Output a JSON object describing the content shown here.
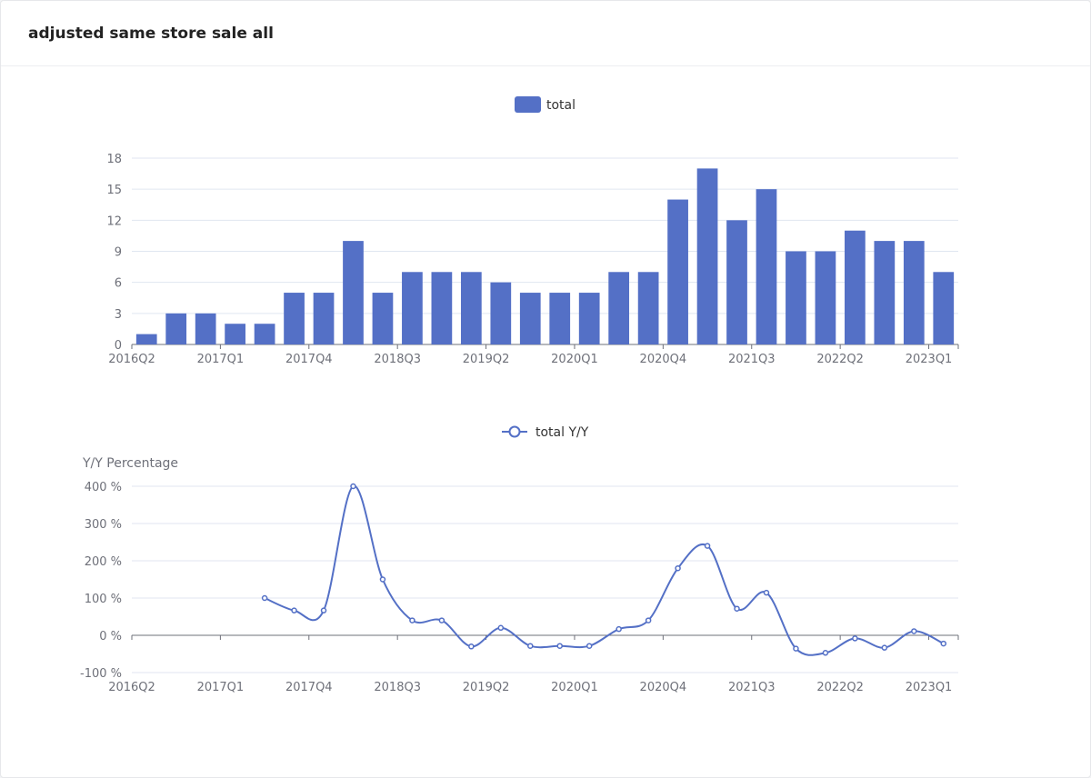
{
  "page": {
    "title": "adjusted same store sale all"
  },
  "colors": {
    "series": "#5470c6",
    "grid": "#e0e6f1",
    "axis": "#6e7079"
  },
  "chart_data": [
    {
      "type": "bar",
      "legend": [
        "total"
      ],
      "categories": [
        "2016Q2",
        "2016Q3",
        "2016Q4",
        "2017Q1",
        "2017Q2",
        "2017Q3",
        "2017Q4",
        "2018Q1",
        "2018Q2",
        "2018Q3",
        "2018Q4",
        "2019Q1",
        "2019Q2",
        "2019Q3",
        "2019Q4",
        "2020Q1",
        "2020Q2",
        "2020Q3",
        "2020Q4",
        "2021Q1",
        "2021Q2",
        "2021Q3",
        "2021Q4",
        "2022Q1",
        "2022Q2",
        "2022Q3",
        "2022Q4",
        "2023Q1"
      ],
      "x_tick_labels": [
        "2016Q2",
        "2017Q1",
        "2017Q4",
        "2018Q3",
        "2019Q2",
        "2020Q1",
        "2020Q4",
        "2021Q3",
        "2022Q2",
        "2023Q1"
      ],
      "series": [
        {
          "name": "total",
          "values": [
            1,
            3,
            3,
            2,
            2,
            5,
            5,
            10,
            5,
            7,
            7,
            7,
            6,
            5,
            5,
            5,
            7,
            7,
            14,
            17,
            12,
            15,
            9,
            9,
            11,
            10,
            10,
            7
          ]
        }
      ],
      "y_ticks": [
        "0",
        "3",
        "6",
        "9",
        "12",
        "15",
        "18"
      ],
      "ylim": [
        0,
        18
      ],
      "grid": true,
      "legend_position": "top-center"
    },
    {
      "type": "line",
      "legend": [
        "total Y/Y"
      ],
      "ylabel": "Y/Y Percentage",
      "categories": [
        "2016Q2",
        "2016Q3",
        "2016Q4",
        "2017Q1",
        "2017Q2",
        "2017Q3",
        "2017Q4",
        "2018Q1",
        "2018Q2",
        "2018Q3",
        "2018Q4",
        "2019Q1",
        "2019Q2",
        "2019Q3",
        "2019Q4",
        "2020Q1",
        "2020Q2",
        "2020Q3",
        "2020Q4",
        "2021Q1",
        "2021Q2",
        "2021Q3",
        "2021Q4",
        "2022Q1",
        "2022Q2",
        "2022Q3",
        "2022Q4",
        "2023Q1"
      ],
      "x_tick_labels": [
        "2016Q2",
        "2017Q1",
        "2017Q4",
        "2018Q3",
        "2019Q2",
        "2020Q1",
        "2020Q4",
        "2021Q3",
        "2022Q2",
        "2023Q1"
      ],
      "series": [
        {
          "name": "total Y/Y",
          "values": [
            null,
            null,
            null,
            null,
            100,
            66.7,
            66.7,
            400,
            150,
            40,
            40,
            -30,
            20,
            -28.6,
            -28.6,
            -28.6,
            16.7,
            40,
            180,
            240,
            71.4,
            114.3,
            -35.7,
            -47.1,
            -8.3,
            -33.3,
            11.1,
            -22.2
          ]
        }
      ],
      "y_ticks": [
        "-100 %",
        "0 %",
        "100 %",
        "200 %",
        "300 %",
        "400 %"
      ],
      "ylim": [
        -100,
        400
      ],
      "grid": true,
      "legend_position": "top-center"
    }
  ]
}
